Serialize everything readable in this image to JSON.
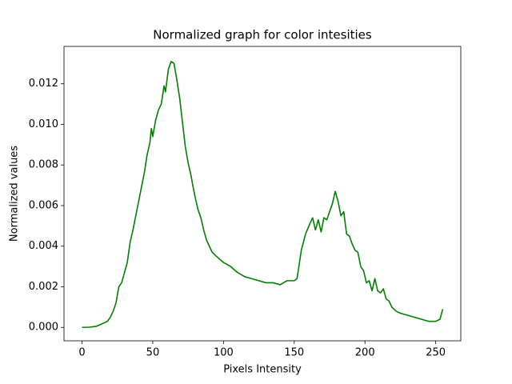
{
  "chart_data": {
    "type": "line",
    "title": "Normalized graph for color intesities",
    "xlabel": "Pixels Intensity",
    "ylabel": "Normalized values",
    "color": "#008000",
    "x": [
      0,
      5,
      10,
      15,
      18,
      20,
      22,
      24,
      26,
      28,
      30,
      32,
      34,
      36,
      38,
      40,
      42,
      44,
      46,
      48,
      49,
      50,
      52,
      54,
      56,
      58,
      59,
      61,
      63,
      65,
      67,
      69,
      71,
      73,
      75,
      77,
      78,
      80,
      82,
      84,
      86,
      88,
      90,
      92,
      95,
      100,
      105,
      110,
      115,
      120,
      125,
      130,
      135,
      140,
      145,
      150,
      152,
      155,
      158,
      161,
      163,
      165,
      167,
      169,
      171,
      173,
      175,
      177,
      179,
      181,
      183,
      185,
      187,
      189,
      191,
      193,
      195,
      197,
      199,
      201,
      203,
      205,
      207,
      209,
      211,
      213,
      215,
      217,
      219,
      222,
      225,
      230,
      235,
      240,
      245,
      250,
      253,
      255
    ],
    "values": [
      0,
      1e-05,
      5e-05,
      0.0002,
      0.0003,
      0.0005,
      0.0008,
      0.0012,
      0.002,
      0.0022,
      0.0027,
      0.0032,
      0.0042,
      0.0048,
      0.0055,
      0.0062,
      0.0069,
      0.0076,
      0.0085,
      0.0091,
      0.0098,
      0.0094,
      0.0102,
      0.0107,
      0.011,
      0.0119,
      0.0116,
      0.0127,
      0.0131,
      0.013,
      0.0122,
      0.0113,
      0.0101,
      0.0089,
      0.0081,
      0.0075,
      0.0071,
      0.0064,
      0.0058,
      0.0054,
      0.0048,
      0.0043,
      0.004,
      0.0037,
      0.0035,
      0.0032,
      0.003,
      0.0027,
      0.0025,
      0.0024,
      0.0023,
      0.0022,
      0.0022,
      0.0021,
      0.0023,
      0.0023,
      0.0024,
      0.0038,
      0.0046,
      0.0051,
      0.0054,
      0.0048,
      0.0053,
      0.0047,
      0.0054,
      0.0053,
      0.0057,
      0.0061,
      0.0067,
      0.0062,
      0.0055,
      0.0057,
      0.0046,
      0.0045,
      0.0041,
      0.0038,
      0.0037,
      0.003,
      0.0028,
      0.0022,
      0.0023,
      0.0018,
      0.0024,
      0.0018,
      0.0017,
      0.0019,
      0.0014,
      0.0013,
      0.001,
      0.0008,
      0.0007,
      0.0006,
      0.0005,
      0.0004,
      0.0003,
      0.0003,
      0.0004,
      0.0009
    ],
    "xlim": [
      -12.75,
      267.75
    ],
    "ylim": [
      -0.00066,
      0.01384
    ],
    "xticks": [
      0,
      50,
      100,
      150,
      200,
      250
    ],
    "yticks": [
      {
        "value": 0,
        "label": "0.000"
      },
      0.002,
      0.004,
      0.006,
      0.008,
      {
        "value": 0.01,
        "label": "0.010"
      },
      0.012
    ]
  }
}
